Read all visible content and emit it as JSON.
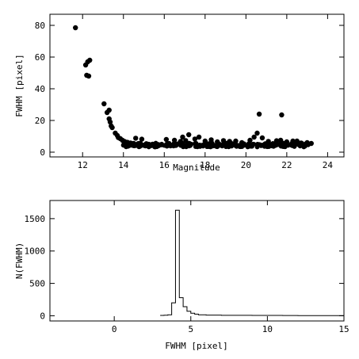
{
  "chart_data": [
    {
      "type": "scatter",
      "xlabel": "Magnitude",
      "ylabel": "FWHM [pixel]",
      "xlim": [
        10.4,
        24.8
      ],
      "ylim": [
        -3,
        87
      ],
      "xticks": [
        12,
        14,
        16,
        18,
        20,
        22,
        24
      ],
      "yticks": [
        0,
        20,
        40,
        60,
        80
      ],
      "marker_color": "#000000",
      "points": [
        [
          11.65,
          78.5
        ],
        [
          12.15,
          55
        ],
        [
          12.2,
          48.5
        ],
        [
          12.25,
          57
        ],
        [
          12.3,
          48
        ],
        [
          12.35,
          58
        ],
        [
          13.05,
          30.5
        ],
        [
          13.2,
          25
        ],
        [
          13.3,
          21
        ],
        [
          13.3,
          26.5
        ],
        [
          13.35,
          19
        ],
        [
          13.4,
          16.5
        ],
        [
          13.45,
          15.5
        ],
        [
          13.6,
          12
        ],
        [
          13.7,
          10.5
        ],
        [
          13.75,
          9.2
        ],
        [
          13.85,
          8.5
        ],
        [
          13.95,
          7.5
        ],
        [
          14.05,
          6.8
        ],
        [
          14.2,
          6.2
        ],
        [
          14.35,
          5.8
        ],
        [
          14.6,
          8.8
        ],
        [
          14.5,
          5.5
        ],
        [
          14.8,
          5.3
        ],
        [
          14.9,
          8.2
        ],
        [
          15.1,
          5
        ],
        [
          15.4,
          4.8
        ],
        [
          15.7,
          4.7
        ],
        [
          16.1,
          8
        ],
        [
          16.5,
          7.5
        ],
        [
          16.8,
          6.8
        ],
        [
          16.9,
          9.5
        ],
        [
          17.05,
          7.3
        ],
        [
          17.2,
          11
        ],
        [
          17.5,
          8.3
        ],
        [
          17.7,
          9.5
        ],
        [
          18.0,
          7
        ],
        [
          18.3,
          7.8
        ],
        [
          18.6,
          6.5
        ],
        [
          18.9,
          7.3
        ],
        [
          19.2,
          6.8
        ],
        [
          19.5,
          7
        ],
        [
          19.8,
          6
        ],
        [
          20.2,
          7.5
        ],
        [
          20.4,
          9.5
        ],
        [
          20.55,
          12
        ],
        [
          20.65,
          24
        ],
        [
          20.8,
          9
        ],
        [
          21.1,
          6.8
        ],
        [
          21.5,
          7.2
        ],
        [
          21.75,
          23.5
        ],
        [
          21.7,
          7.5
        ],
        [
          22.0,
          6.5
        ],
        [
          22.3,
          7
        ],
        [
          22.5,
          7
        ],
        [
          22.7,
          5.8
        ],
        [
          23.0,
          6
        ],
        [
          23.2,
          5.5
        ]
      ],
      "dense_band": {
        "x_range": [
          14,
          23.3
        ],
        "y_center": 4.5,
        "spread": 1.2
      }
    },
    {
      "type": "histogram",
      "xlabel": "FWHM [pixel]",
      "ylabel": "N(FWHM)",
      "xlim": [
        -4.2,
        15
      ],
      "ylim": [
        -80,
        1780
      ],
      "xticks": [
        0,
        5,
        10,
        15
      ],
      "yticks": [
        0,
        500,
        1000,
        1500
      ],
      "line_color": "#000000",
      "steps": [
        [
          3.0,
          3.25,
          5
        ],
        [
          3.25,
          3.5,
          8
        ],
        [
          3.5,
          3.75,
          15
        ],
        [
          3.75,
          4.0,
          200
        ],
        [
          4.0,
          4.25,
          1630
        ],
        [
          4.25,
          4.5,
          280
        ],
        [
          4.5,
          4.75,
          140
        ],
        [
          4.75,
          5.0,
          70
        ],
        [
          5.0,
          5.25,
          40
        ],
        [
          5.25,
          5.5,
          25
        ],
        [
          5.5,
          6.0,
          15
        ],
        [
          6.0,
          7.0,
          10
        ],
        [
          7.0,
          9.0,
          7
        ],
        [
          9.0,
          11.0,
          5
        ],
        [
          11.0,
          12.0,
          4
        ],
        [
          12.0,
          15.0,
          2
        ]
      ]
    }
  ]
}
